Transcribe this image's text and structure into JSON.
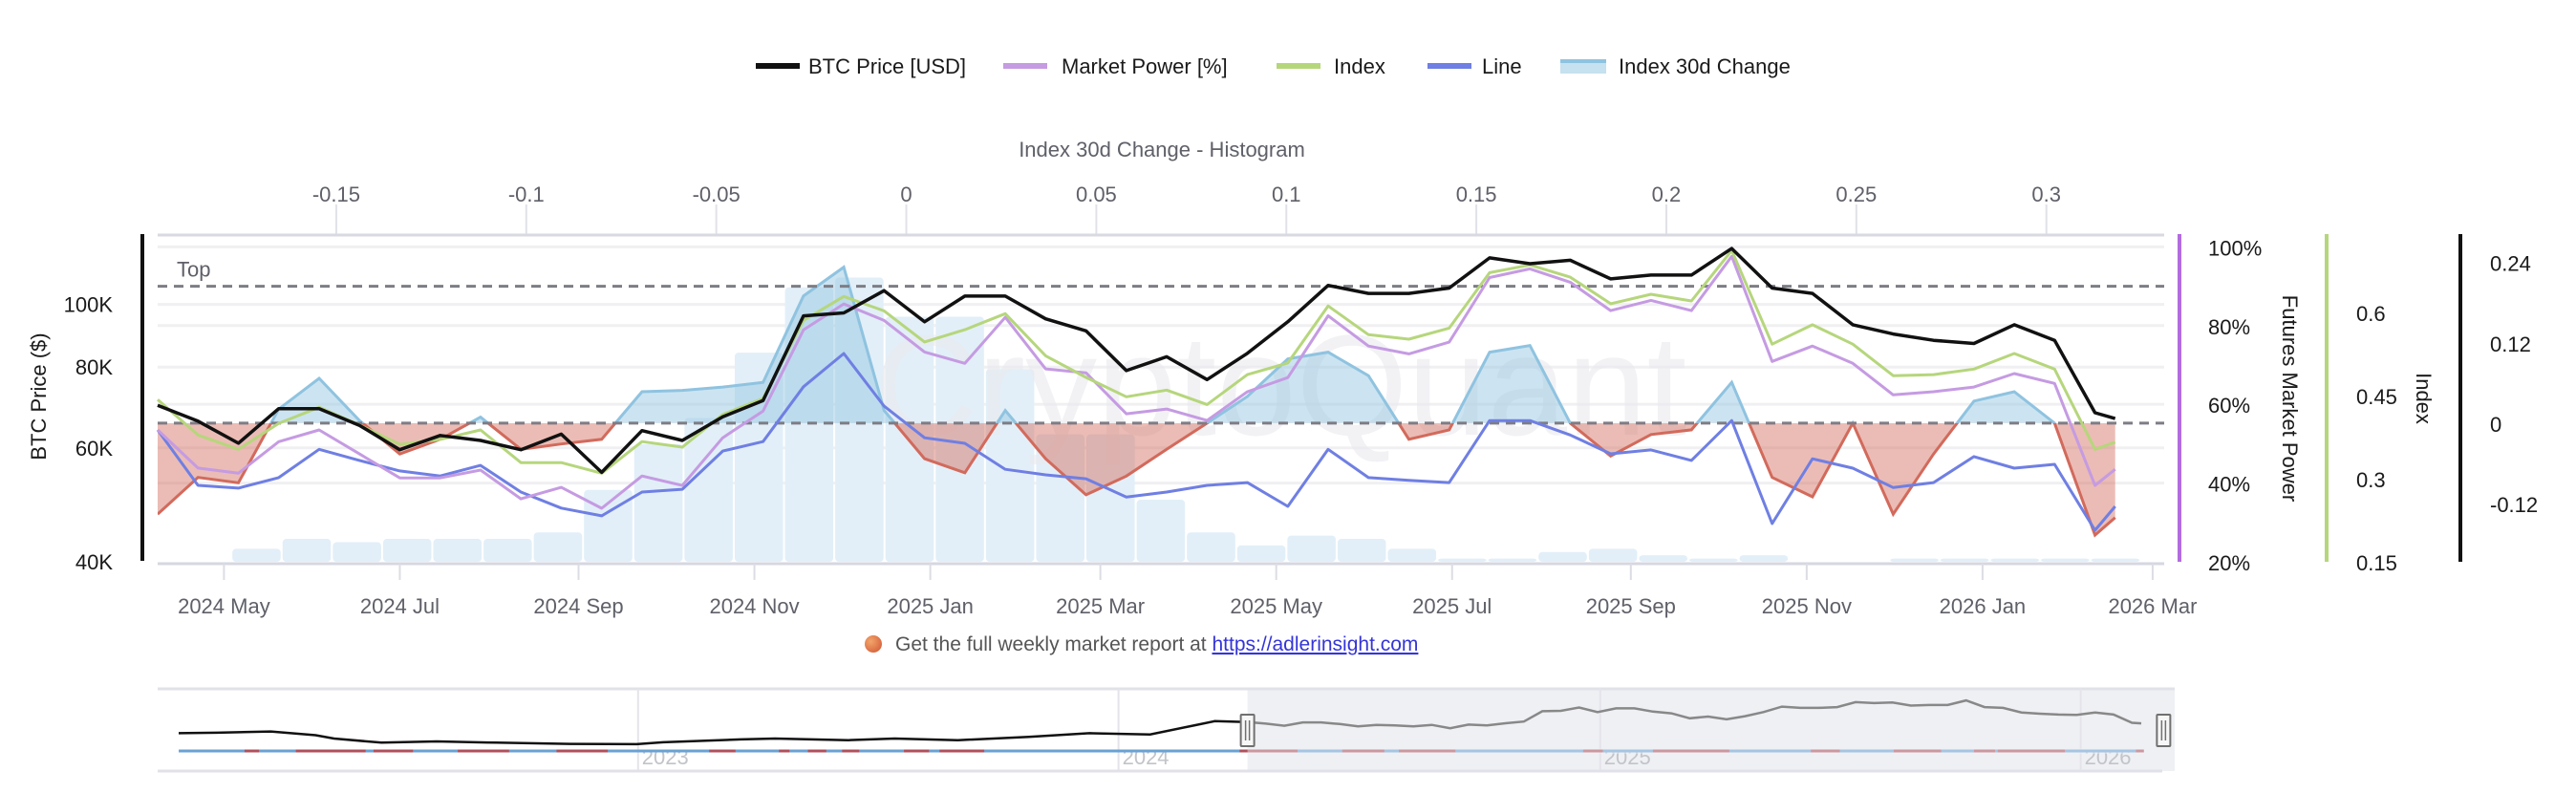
{
  "legend": [
    {
      "label": "BTC Price [USD]",
      "color": "#111111",
      "kind": "line"
    },
    {
      "label": "Market Power [%]",
      "color": "#c59be2",
      "kind": "line"
    },
    {
      "label": "Index",
      "color": "#b6d67c",
      "kind": "line"
    },
    {
      "label": "Line",
      "color": "#6f7fe3",
      "kind": "line"
    },
    {
      "label": "Index 30d Change",
      "color": "#8fc3e0",
      "kind": "area"
    }
  ],
  "footer": {
    "text": "Get the full weekly market report at ",
    "link": "https://adlerinsight.com"
  },
  "watermark": "CryptoQuant",
  "chart_data": [
    {
      "type": "line",
      "title": "",
      "x_range": [
        "2024-04-08",
        "2026-03-05"
      ],
      "x_ticks": [
        {
          "label": "2024 May",
          "date": "2024-05-01"
        },
        {
          "label": "2024 Jul",
          "date": "2024-07-01"
        },
        {
          "label": "2024 Sep",
          "date": "2024-09-01"
        },
        {
          "label": "2024 Nov",
          "date": "2024-11-01"
        },
        {
          "label": "2025 Jan",
          "date": "2025-01-01"
        },
        {
          "label": "2025 Mar",
          "date": "2025-03-01"
        },
        {
          "label": "2025 May",
          "date": "2025-05-01"
        },
        {
          "label": "2025 Jul",
          "date": "2025-07-01"
        },
        {
          "label": "2025 Sep",
          "date": "2025-09-01"
        },
        {
          "label": "2025 Nov",
          "date": "2025-11-01"
        },
        {
          "label": "2026 Jan",
          "date": "2026-01-01"
        },
        {
          "label": "2026 Mar",
          "date": "2026-03-01"
        }
      ],
      "axes": {
        "btc": {
          "title": "BTC Price ($)",
          "scale": "log",
          "range": [
            40000,
            128000
          ],
          "color": "#111111",
          "ticks": [
            {
              "v": 40000,
              "label": "40K"
            },
            {
              "v": 60000,
              "label": "60K"
            },
            {
              "v": 80000,
              "label": "80K"
            },
            {
              "v": 100000,
              "label": "100K"
            }
          ]
        },
        "market_power": {
          "title": "Futures Market Power",
          "scale": "linear",
          "range": [
            20,
            103
          ],
          "color": "#b36ce0",
          "ticks": [
            {
              "v": 20,
              "label": "20%"
            },
            {
              "v": 40,
              "label": "40%"
            },
            {
              "v": 60,
              "label": "60%"
            },
            {
              "v": 80,
              "label": "80%"
            },
            {
              "v": 100,
              "label": "100%"
            }
          ]
        },
        "index": {
          "title": "Index",
          "scale": "linear",
          "range": [
            0.15,
            0.74
          ],
          "color": "#b6d67c",
          "ticks": [
            {
              "v": 0.15,
              "label": "0.15"
            },
            {
              "v": 0.3,
              "label": "0.3"
            },
            {
              "v": 0.45,
              "label": "0.45"
            },
            {
              "v": 0.6,
              "label": "0.6"
            }
          ]
        },
        "change": {
          "title": "",
          "scale": "linear",
          "range": [
            -0.207,
            0.281
          ],
          "color": "#111111",
          "ticks": [
            {
              "v": -0.12,
              "label": "-0.12"
            },
            {
              "v": 0,
              "label": "0"
            },
            {
              "v": 0.12,
              "label": "0.12"
            },
            {
              "v": 0.24,
              "label": "0.24"
            }
          ]
        }
      },
      "reference_lines": [
        {
          "label": "Top",
          "axis": "market_power",
          "value": 90
        },
        {
          "label": "",
          "axis": "change",
          "value": 0
        }
      ],
      "dates": [
        "2024-04-08",
        "2024-04-22",
        "2024-05-06",
        "2024-05-20",
        "2024-06-03",
        "2024-06-17",
        "2024-07-01",
        "2024-07-15",
        "2024-07-29",
        "2024-08-12",
        "2024-08-26",
        "2024-09-09",
        "2024-09-23",
        "2024-10-07",
        "2024-10-21",
        "2024-11-04",
        "2024-11-18",
        "2024-12-02",
        "2024-12-16",
        "2024-12-30",
        "2025-01-13",
        "2025-01-27",
        "2025-02-10",
        "2025-02-24",
        "2025-03-10",
        "2025-03-24",
        "2025-04-07",
        "2025-04-21",
        "2025-05-05",
        "2025-05-19",
        "2025-06-02",
        "2025-06-16",
        "2025-06-30",
        "2025-07-14",
        "2025-07-28",
        "2025-08-11",
        "2025-08-25",
        "2025-09-08",
        "2025-09-22",
        "2025-10-06",
        "2025-10-20",
        "2025-11-03",
        "2025-11-17",
        "2025-12-01",
        "2025-12-15",
        "2025-12-29",
        "2026-01-12",
        "2026-01-26",
        "2026-02-09",
        "2026-02-16"
      ],
      "series": [
        {
          "name": "BTC Price [USD]",
          "axis": "btc",
          "color": "#111111",
          "values": [
            69800,
            66000,
            61000,
            69000,
            69000,
            65000,
            59600,
            62700,
            61600,
            59600,
            63000,
            55000,
            63800,
            61600,
            67000,
            71000,
            96000,
            97000,
            105000,
            94000,
            103000,
            103000,
            95000,
            91000,
            79000,
            83000,
            76500,
            84000,
            94000,
            107000,
            104000,
            104000,
            106000,
            118000,
            115600,
            117000,
            109500,
            111000,
            111000,
            122000,
            106000,
            104000,
            93000,
            90000,
            88000,
            87000,
            93000,
            88000,
            68000,
            66600
          ]
        },
        {
          "name": "Market Power [%]",
          "axis": "market_power",
          "color": "#c59be2",
          "values": [
            53.5,
            43.8,
            42.5,
            50.5,
            53.5,
            47.4,
            41.3,
            41.3,
            43.3,
            36.0,
            38.9,
            33.6,
            41.8,
            39.4,
            51.5,
            58.3,
            78.9,
            85.5,
            81.3,
            73.3,
            70.4,
            82.1,
            69.0,
            68.0,
            57.6,
            58.8,
            55.9,
            63.2,
            66.8,
            82.5,
            74.8,
            72.8,
            75.8,
            92.2,
            94.4,
            91.0,
            83.8,
            86.4,
            83.8,
            97.6,
            70.9,
            74.8,
            70.4,
            62.4,
            63.2,
            64.4,
            67.8,
            65.3,
            39.4,
            43.5
          ]
        },
        {
          "name": "Index",
          "axis": "index",
          "color": "#b6d67c",
          "values": [
            0.443,
            0.379,
            0.353,
            0.4,
            0.429,
            0.397,
            0.362,
            0.371,
            0.388,
            0.329,
            0.329,
            0.31,
            0.367,
            0.357,
            0.416,
            0.445,
            0.586,
            0.629,
            0.603,
            0.547,
            0.569,
            0.598,
            0.522,
            0.483,
            0.448,
            0.46,
            0.434,
            0.488,
            0.509,
            0.612,
            0.56,
            0.552,
            0.572,
            0.672,
            0.686,
            0.664,
            0.616,
            0.633,
            0.621,
            0.712,
            0.543,
            0.578,
            0.543,
            0.486,
            0.488,
            0.498,
            0.526,
            0.498,
            0.353,
            0.366
          ]
        },
        {
          "name": "Line",
          "axis": "index",
          "color": "#6f7fe3",
          "values": [
            0.388,
            0.288,
            0.283,
            0.302,
            0.353,
            0.333,
            0.314,
            0.305,
            0.324,
            0.276,
            0.247,
            0.233,
            0.276,
            0.281,
            0.35,
            0.367,
            0.466,
            0.526,
            0.431,
            0.374,
            0.364,
            0.317,
            0.307,
            0.3,
            0.267,
            0.276,
            0.288,
            0.293,
            0.25,
            0.353,
            0.302,
            0.297,
            0.293,
            0.405,
            0.405,
            0.379,
            0.345,
            0.352,
            0.333,
            0.405,
            0.219,
            0.336,
            0.319,
            0.284,
            0.293,
            0.34,
            0.319,
            0.326,
            0.207,
            0.25
          ]
        },
        {
          "name": "Index 30d Change",
          "axis": "change",
          "color": "#8fc3e0",
          "negative_color": "#d26a5c",
          "values": [
            -0.136,
            -0.081,
            -0.089,
            0.021,
            0.067,
            0.004,
            -0.046,
            -0.024,
            0.009,
            -0.039,
            -0.031,
            -0.024,
            0.047,
            0.049,
            0.054,
            0.061,
            0.19,
            0.233,
            0.019,
            -0.053,
            -0.074,
            0.019,
            -0.053,
            -0.107,
            -0.079,
            -0.039,
            0.0,
            0.04,
            0.096,
            0.106,
            0.071,
            -0.024,
            -0.01,
            0.106,
            0.116,
            0.0,
            -0.049,
            -0.017,
            -0.01,
            0.061,
            -0.081,
            -0.11,
            0.0,
            -0.136,
            -0.046,
            0.033,
            0.047,
            0.0,
            -0.167,
            -0.141
          ]
        }
      ]
    },
    {
      "type": "bar",
      "title": "Index 30d Change - Histogram",
      "x_range": [
        -0.197,
        0.331
      ],
      "x_ticks": [
        {
          "v": -0.15,
          "label": "-0.15"
        },
        {
          "v": -0.1,
          "label": "-0.1"
        },
        {
          "v": -0.05,
          "label": "-0.05"
        },
        {
          "v": 0,
          "label": "0"
        },
        {
          "v": 0.05,
          "label": "0.05"
        },
        {
          "v": 0.1,
          "label": "0.1"
        },
        {
          "v": 0.15,
          "label": "0.15"
        },
        {
          "v": 0.2,
          "label": "0.2"
        },
        {
          "v": 0.25,
          "label": "0.25"
        },
        {
          "v": 0.3,
          "label": "0.3"
        }
      ],
      "bin_start": -0.1776,
      "bin_width": 0.01322,
      "counts": [
        4,
        7,
        6,
        7,
        7,
        7,
        9,
        22,
        36,
        44,
        64,
        84,
        87,
        75,
        75,
        59,
        39,
        39,
        19,
        9,
        5,
        8,
        7,
        4,
        1,
        1,
        3,
        4,
        2,
        1,
        2,
        0,
        0,
        1,
        1,
        1,
        1,
        1
      ],
      "y_range": [
        0,
        100
      ],
      "color": "#e2eff8"
    },
    {
      "type": "line",
      "title": "",
      "role": "navigator",
      "x_range": [
        "2022-01-01",
        "2026-03-04"
      ],
      "selected_range": [
        "2024-04-08",
        "2026-03-05"
      ],
      "x_ticks": [
        {
          "label": "2023",
          "date": "2023-01-01"
        },
        {
          "label": "2024",
          "date": "2024-01-01"
        },
        {
          "label": "2025",
          "date": "2025-01-01"
        },
        {
          "label": "2026",
          "date": "2026-01-01"
        }
      ],
      "y_range": [
        0,
        150000
      ],
      "history": {
        "dates": [
          "2022-01-17",
          "2022-02-15",
          "2022-03-28",
          "2022-05-01",
          "2022-05-15",
          "2022-06-20",
          "2022-08-01",
          "2022-09-15",
          "2022-11-10",
          "2022-12-31",
          "2023-01-20",
          "2023-03-20",
          "2023-04-15",
          "2023-06-10",
          "2023-07-15",
          "2023-09-01",
          "2023-10-25",
          "2023-12-10",
          "2024-01-25",
          "2024-02-28",
          "2024-03-14"
        ],
        "values": [
          43000,
          44000,
          47000,
          38000,
          30000,
          20000,
          23000,
          20000,
          17000,
          16500,
          21000,
          28000,
          30000,
          26000,
          30000,
          26000,
          34000,
          43000,
          40000,
          62000,
          72000
        ]
      },
      "negative_periods": [
        [
          "2022-03-08",
          "2022-03-19"
        ],
        [
          "2022-04-16",
          "2022-06-08"
        ],
        [
          "2022-06-14",
          "2022-07-14"
        ],
        [
          "2022-08-17",
          "2022-09-25"
        ],
        [
          "2022-10-31",
          "2022-12-09"
        ],
        [
          "2023-02-24",
          "2023-03-16"
        ],
        [
          "2023-04-18",
          "2023-04-26"
        ],
        [
          "2023-05-10",
          "2023-05-24"
        ],
        [
          "2023-06-05",
          "2023-06-18"
        ],
        [
          "2023-07-22",
          "2023-08-10"
        ],
        [
          "2023-08-18",
          "2023-09-21"
        ],
        [
          "2024-04-02",
          "2024-05-16"
        ],
        [
          "2024-06-19",
          "2024-07-21"
        ],
        [
          "2024-08-01",
          "2024-09-13"
        ],
        [
          "2024-12-19",
          "2025-01-03"
        ],
        [
          "2025-02-10",
          "2025-04-09"
        ],
        [
          "2025-06-10",
          "2025-07-02"
        ],
        [
          "2025-08-12",
          "2025-09-17"
        ],
        [
          "2025-10-12",
          "2025-10-28"
        ],
        [
          "2025-10-30",
          "2025-12-20"
        ],
        [
          "2026-02-12",
          "2026-02-18"
        ]
      ]
    }
  ]
}
